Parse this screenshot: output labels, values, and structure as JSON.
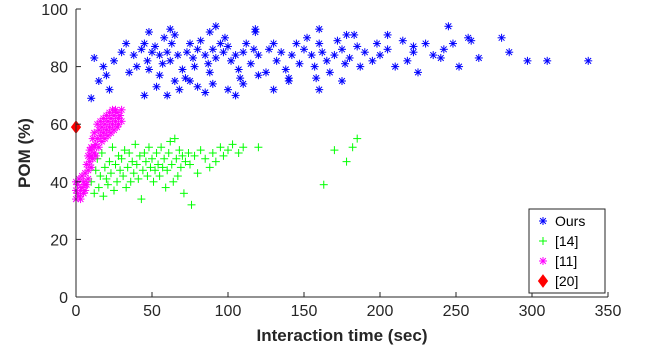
{
  "chart_data": {
    "type": "scatter",
    "title": "",
    "xlabel": "Interaction time (sec)",
    "ylabel": "POM (%)",
    "xlim": [
      0,
      350
    ],
    "ylim": [
      0,
      100
    ],
    "xticks": [
      0,
      50,
      100,
      150,
      200,
      250,
      300,
      350
    ],
    "yticks": [
      0,
      20,
      40,
      60,
      80,
      100
    ],
    "grid": false,
    "legend_position": "bottom-right",
    "series": [
      {
        "name": "Ours",
        "marker": "asterisk",
        "color": "#0000ff",
        "points": [
          [
            12,
            83
          ],
          [
            15,
            75
          ],
          [
            18,
            80
          ],
          [
            20,
            77
          ],
          [
            25,
            82
          ],
          [
            35,
            78
          ],
          [
            38,
            84
          ],
          [
            40,
            80
          ],
          [
            43,
            86
          ],
          [
            45,
            88
          ],
          [
            47,
            82
          ],
          [
            48,
            79
          ],
          [
            50,
            85
          ],
          [
            52,
            87
          ],
          [
            55,
            84
          ],
          [
            57,
            81
          ],
          [
            58,
            90
          ],
          [
            60,
            85
          ],
          [
            62,
            82
          ],
          [
            63,
            88
          ],
          [
            65,
            91
          ],
          [
            67,
            84
          ],
          [
            70,
            79
          ],
          [
            72,
            76
          ],
          [
            73,
            85
          ],
          [
            75,
            88
          ],
          [
            77,
            83
          ],
          [
            78,
            80
          ],
          [
            80,
            86
          ],
          [
            82,
            89
          ],
          [
            85,
            84
          ],
          [
            87,
            81
          ],
          [
            88,
            78
          ],
          [
            90,
            86
          ],
          [
            92,
            83
          ],
          [
            95,
            88
          ],
          [
            97,
            85
          ],
          [
            98,
            90
          ],
          [
            100,
            87
          ],
          [
            102,
            82
          ],
          [
            105,
            84
          ],
          [
            107,
            79
          ],
          [
            108,
            76
          ],
          [
            110,
            85
          ],
          [
            112,
            88
          ],
          [
            115,
            81
          ],
          [
            117,
            86
          ],
          [
            118,
            92
          ],
          [
            120,
            84
          ],
          [
            125,
            78
          ],
          [
            127,
            86
          ],
          [
            130,
            88
          ],
          [
            132,
            82
          ],
          [
            135,
            85
          ],
          [
            138,
            79
          ],
          [
            140,
            76
          ],
          [
            142,
            84
          ],
          [
            145,
            88
          ],
          [
            147,
            81
          ],
          [
            150,
            86
          ],
          [
            152,
            90
          ],
          [
            155,
            84
          ],
          [
            157,
            80
          ],
          [
            158,
            76
          ],
          [
            160,
            88
          ],
          [
            162,
            85
          ],
          [
            165,
            82
          ],
          [
            167,
            78
          ],
          [
            170,
            84
          ],
          [
            172,
            89
          ],
          [
            175,
            86
          ],
          [
            177,
            81
          ],
          [
            180,
            83
          ],
          [
            183,
            91
          ],
          [
            185,
            87
          ],
          [
            187,
            80
          ],
          [
            190,
            85
          ],
          [
            195,
            82
          ],
          [
            198,
            88
          ],
          [
            200,
            84
          ],
          [
            205,
            86
          ],
          [
            210,
            80
          ],
          [
            215,
            89
          ],
          [
            218,
            82
          ],
          [
            222,
            85
          ],
          [
            225,
            78
          ],
          [
            230,
            88
          ],
          [
            235,
            84
          ],
          [
            240,
            83
          ],
          [
            245,
            94
          ],
          [
            248,
            88
          ],
          [
            252,
            80
          ],
          [
            258,
            90
          ],
          [
            265,
            83
          ],
          [
            280,
            90
          ],
          [
            285,
            85
          ],
          [
            297,
            82
          ],
          [
            310,
            82
          ],
          [
            337,
            82
          ],
          [
            30,
            85
          ],
          [
            33,
            88
          ],
          [
            53,
            73
          ],
          [
            55,
            77
          ],
          [
            60,
            70
          ],
          [
            65,
            75
          ],
          [
            68,
            72
          ],
          [
            75,
            75
          ],
          [
            80,
            73
          ],
          [
            85,
            71
          ],
          [
            90,
            74
          ],
          [
            100,
            72
          ],
          [
            105,
            70
          ],
          [
            110,
            74
          ],
          [
            120,
            77
          ],
          [
            130,
            72
          ],
          [
            140,
            75
          ],
          [
            160,
            72
          ],
          [
            175,
            75
          ],
          [
            45,
            70
          ],
          [
            22,
            72
          ],
          [
            10,
            69
          ],
          [
            48,
            92
          ],
          [
            62,
            93
          ],
          [
            88,
            92
          ],
          [
            92,
            94
          ],
          [
            118,
            93
          ],
          [
            160,
            93
          ],
          [
            178,
            91
          ],
          [
            205,
            91
          ],
          [
            222,
            87
          ],
          [
            242,
            86
          ],
          [
            260,
            89
          ]
        ]
      },
      {
        "name": "[14]",
        "marker": "plus",
        "color": "#00ff00",
        "points": [
          [
            10,
            40
          ],
          [
            12,
            36
          ],
          [
            13,
            44
          ],
          [
            14,
            48
          ],
          [
            15,
            38
          ],
          [
            16,
            42
          ],
          [
            17,
            50
          ],
          [
            18,
            35
          ],
          [
            19,
            45
          ],
          [
            20,
            41
          ],
          [
            21,
            39
          ],
          [
            22,
            47
          ],
          [
            23,
            43
          ],
          [
            24,
            52
          ],
          [
            25,
            37
          ],
          [
            26,
            46
          ],
          [
            27,
            40
          ],
          [
            28,
            49
          ],
          [
            29,
            44
          ],
          [
            30,
            48
          ],
          [
            31,
            42
          ],
          [
            32,
            51
          ],
          [
            33,
            38
          ],
          [
            34,
            45
          ],
          [
            35,
            50
          ],
          [
            36,
            40
          ],
          [
            37,
            47
          ],
          [
            38,
            43
          ],
          [
            39,
            53
          ],
          [
            40,
            46
          ],
          [
            41,
            41
          ],
          [
            42,
            49
          ],
          [
            43,
            34
          ],
          [
            44,
            44
          ],
          [
            45,
            50
          ],
          [
            46,
            47
          ],
          [
            47,
            42
          ],
          [
            48,
            52
          ],
          [
            49,
            45
          ],
          [
            50,
            48
          ],
          [
            51,
            40
          ],
          [
            52,
            44
          ],
          [
            53,
            50
          ],
          [
            54,
            46
          ],
          [
            55,
            42
          ],
          [
            56,
            52
          ],
          [
            57,
            45
          ],
          [
            58,
            48
          ],
          [
            59,
            38
          ],
          [
            60,
            44
          ],
          [
            61,
            50
          ],
          [
            62,
            54
          ],
          [
            63,
            46
          ],
          [
            64,
            40
          ],
          [
            65,
            55
          ],
          [
            66,
            48
          ],
          [
            67,
            42
          ],
          [
            68,
            51
          ],
          [
            69,
            45
          ],
          [
            70,
            49
          ],
          [
            71,
            36
          ],
          [
            72,
            47
          ],
          [
            74,
            50
          ],
          [
            75,
            46
          ],
          [
            76,
            32
          ],
          [
            78,
            49
          ],
          [
            80,
            43
          ],
          [
            82,
            51
          ],
          [
            85,
            48
          ],
          [
            88,
            45
          ],
          [
            90,
            50
          ],
          [
            92,
            47
          ],
          [
            95,
            52
          ],
          [
            97,
            49
          ],
          [
            100,
            51
          ],
          [
            103,
            53
          ],
          [
            107,
            50
          ],
          [
            110,
            52
          ],
          [
            120,
            52
          ],
          [
            163,
            39
          ],
          [
            170,
            51
          ],
          [
            178,
            47
          ],
          [
            182,
            52
          ],
          [
            185,
            55
          ]
        ]
      },
      {
        "name": "[11]",
        "marker": "asterisk",
        "color": "#ff00ff",
        "points": [
          [
            0,
            34
          ],
          [
            0,
            37
          ],
          [
            0,
            40
          ],
          [
            1,
            36
          ],
          [
            1,
            39
          ],
          [
            2,
            35
          ],
          [
            2,
            41
          ],
          [
            3,
            37
          ],
          [
            3,
            34
          ],
          [
            4,
            38
          ],
          [
            4,
            42
          ],
          [
            5,
            36
          ],
          [
            5,
            40
          ],
          [
            6,
            37
          ],
          [
            6,
            43
          ],
          [
            7,
            39
          ],
          [
            7,
            46
          ],
          [
            8,
            44
          ],
          [
            8,
            49
          ],
          [
            9,
            47
          ],
          [
            9,
            51
          ],
          [
            10,
            45
          ],
          [
            10,
            52
          ],
          [
            11,
            48
          ],
          [
            11,
            55
          ],
          [
            12,
            50
          ],
          [
            12,
            57
          ],
          [
            13,
            53
          ],
          [
            13,
            49
          ],
          [
            14,
            55
          ],
          [
            14,
            60
          ],
          [
            15,
            52
          ],
          [
            15,
            58
          ],
          [
            16,
            56
          ],
          [
            16,
            61
          ],
          [
            17,
            54
          ],
          [
            17,
            59
          ],
          [
            18,
            57
          ],
          [
            18,
            62
          ],
          [
            19,
            55
          ],
          [
            19,
            60
          ],
          [
            20,
            58
          ],
          [
            20,
            63
          ],
          [
            21,
            56
          ],
          [
            21,
            61
          ],
          [
            22,
            59
          ],
          [
            22,
            64
          ],
          [
            23,
            57
          ],
          [
            23,
            62
          ],
          [
            24,
            60
          ],
          [
            24,
            65
          ],
          [
            25,
            58
          ],
          [
            25,
            63
          ],
          [
            26,
            61
          ],
          [
            26,
            65
          ],
          [
            27,
            59
          ],
          [
            27,
            64
          ],
          [
            28,
            62
          ],
          [
            28,
            60
          ],
          [
            29,
            63
          ],
          [
            30,
            61
          ],
          [
            30,
            65
          ],
          [
            8,
            41
          ],
          [
            6,
            39
          ],
          [
            10,
            49
          ],
          [
            12,
            52
          ]
        ]
      },
      {
        "name": "[20]",
        "marker": "diamond",
        "color": "#ff0000",
        "points": [
          [
            0,
            59
          ]
        ]
      }
    ]
  }
}
